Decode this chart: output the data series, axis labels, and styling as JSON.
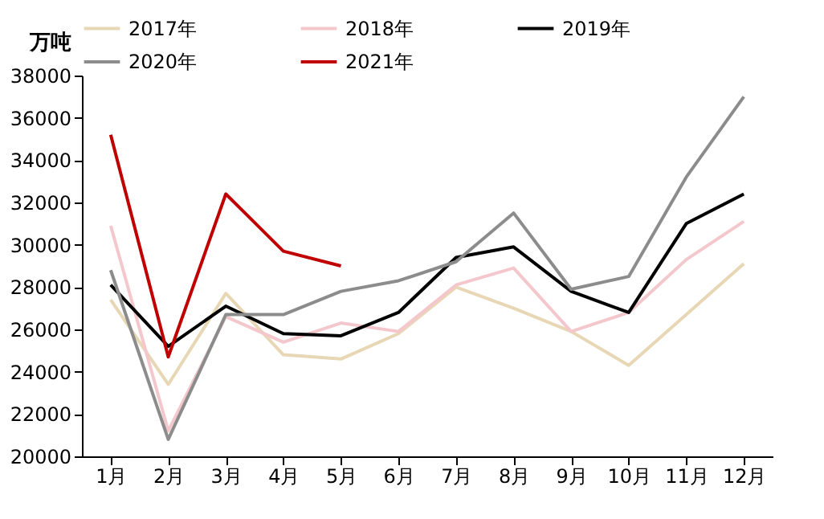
{
  "chart_data": {
    "type": "line",
    "ylabel": "万吨",
    "categories": [
      "1月",
      "2月",
      "3月",
      "4月",
      "5月",
      "6月",
      "7月",
      "8月",
      "9月",
      "10月",
      "11月",
      "12月"
    ],
    "ylim": [
      20000,
      38000
    ],
    "yticks": [
      20000,
      22000,
      24000,
      26000,
      28000,
      30000,
      32000,
      34000,
      36000,
      38000
    ],
    "grid": false,
    "legend": "top",
    "marker": "none",
    "line_style": "solid",
    "series": [
      {
        "name": "2017年",
        "color": "#e8d7b5",
        "values": [
          27400,
          23400,
          27700,
          24800,
          24600,
          25800,
          28000,
          27000,
          25900,
          24300,
          26700,
          29100
        ]
      },
      {
        "name": "2018年",
        "color": "#f4c7cc",
        "values": [
          30900,
          21200,
          26600,
          25400,
          26300,
          25900,
          28100,
          28900,
          25900,
          26800,
          29300,
          31100
        ]
      },
      {
        "name": "2019年",
        "color": "#000000",
        "values": [
          28100,
          25200,
          27100,
          25800,
          25700,
          26800,
          29400,
          29900,
          27800,
          26800,
          31000,
          32400
        ]
      },
      {
        "name": "2020年",
        "color": "#8c8c8c",
        "values": [
          28800,
          20800,
          26700,
          26700,
          27800,
          28300,
          29200,
          31500,
          27900,
          28500,
          33200,
          37000
        ]
      },
      {
        "name": "2021年",
        "color": "#c00000",
        "values": [
          35200,
          24700,
          32400,
          29700,
          29000,
          null,
          null,
          null,
          null,
          null,
          null,
          null
        ]
      }
    ]
  }
}
